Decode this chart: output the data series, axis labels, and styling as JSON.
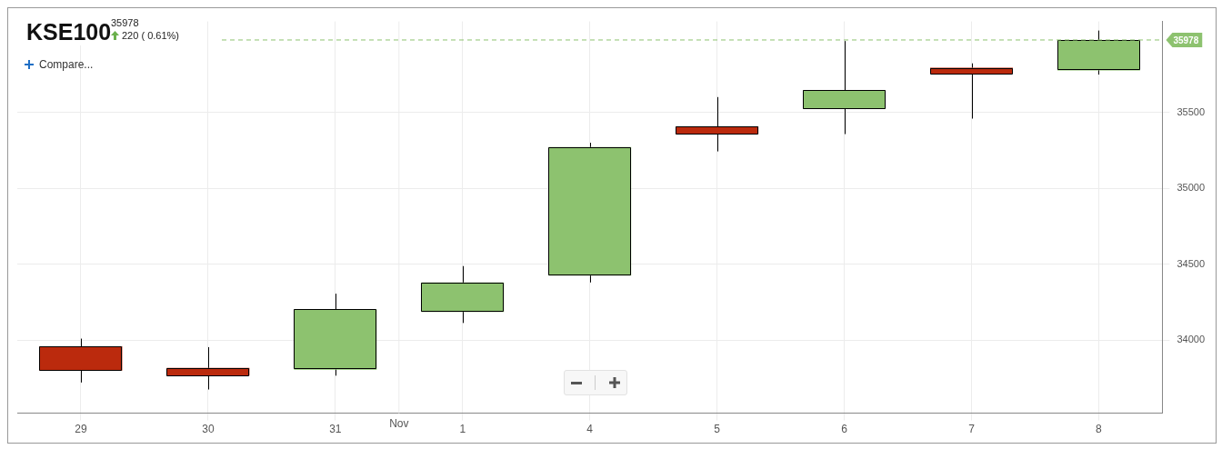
{
  "chart_data": {
    "type": "candlestick",
    "title": "KSE100",
    "subtitle": "35978",
    "categories": [
      "29",
      "30",
      "31",
      "1",
      "4",
      "5",
      "6",
      "7",
      "8"
    ],
    "ohlc": [
      [
        33960,
        34011,
        33722,
        33801
      ],
      [
        33818,
        33955,
        33676,
        33767
      ],
      [
        33807,
        34307,
        33767,
        34205
      ],
      [
        34187,
        34489,
        34114,
        34381
      ],
      [
        34426,
        35301,
        34381,
        35273
      ],
      [
        35409,
        35602,
        35244,
        35358
      ],
      [
        35523,
        35971,
        35358,
        35648
      ],
      [
        35795,
        35824,
        35460,
        35756
      ],
      [
        35778,
        36040,
        35750,
        35978
      ]
    ],
    "colors": [
      "#bb2a0d",
      "#bb2a0d",
      "#8dc26f",
      "#8dc26f",
      "#8dc26f",
      "#bb2a0d",
      "#8dc26f",
      "#bb2a0d",
      "#8dc26f"
    ],
    "ylim": [
      33520,
      36100
    ],
    "yticks": [
      34000,
      34500,
      35000,
      35500
    ],
    "grid": true,
    "legend": false,
    "ref_lines": [
      {
        "axis": "y",
        "value": 35978,
        "label": "35978",
        "color": "#8dc26f",
        "line_style": "dashed"
      }
    ],
    "annotations": [
      "220 ( 0.61%)",
      "Compare...",
      "Nov"
    ]
  }
}
